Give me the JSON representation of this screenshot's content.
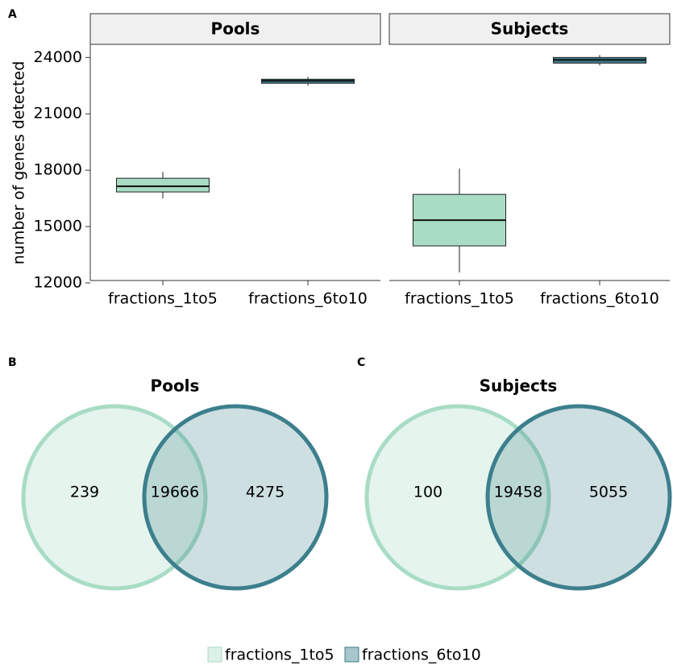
{
  "chart_data": [
    {
      "type": "box",
      "panel_label": "A",
      "ylabel": "number of genes detected",
      "ylim": [
        12000,
        24700
      ],
      "yticks": [
        12000,
        15000,
        18000,
        21000,
        24000
      ],
      "colors": [
        "#a8dcc4",
        "#3c7f8d"
      ],
      "facets": [
        {
          "title": "Pools",
          "categories": [
            "fractions_1to5",
            "fractions_6to10"
          ],
          "boxes": [
            {
              "min": 16500,
              "q1": 16843,
              "median": 17143,
              "q3": 17571,
              "max": 17914
            },
            {
              "min": 22500,
              "q1": 22629,
              "median": 22757,
              "q3": 22843,
              "max": 22971
            }
          ]
        },
        {
          "title": "Subjects",
          "categories": [
            "fractions_1to5",
            "fractions_6to10"
          ],
          "boxes": [
            {
              "min": 12557,
              "q1": 13971,
              "median": 15343,
              "q3": 16714,
              "max": 18086
            },
            {
              "min": 23571,
              "q1": 23700,
              "median": 23871,
              "q3": 24000,
              "max": 24129
            }
          ]
        }
      ]
    },
    {
      "type": "venn",
      "panel_label": "B",
      "title": "Pools",
      "values": [
        239,
        19666,
        4275
      ]
    },
    {
      "type": "venn",
      "panel_label": "C",
      "title": "Subjects",
      "values": [
        100,
        19458,
        5055
      ]
    }
  ],
  "legend": {
    "series": [
      {
        "name": "fractions_1to5",
        "color": "#a8dcc4"
      },
      {
        "name": "fractions_6to10",
        "color": "#3c7f8d"
      }
    ]
  }
}
